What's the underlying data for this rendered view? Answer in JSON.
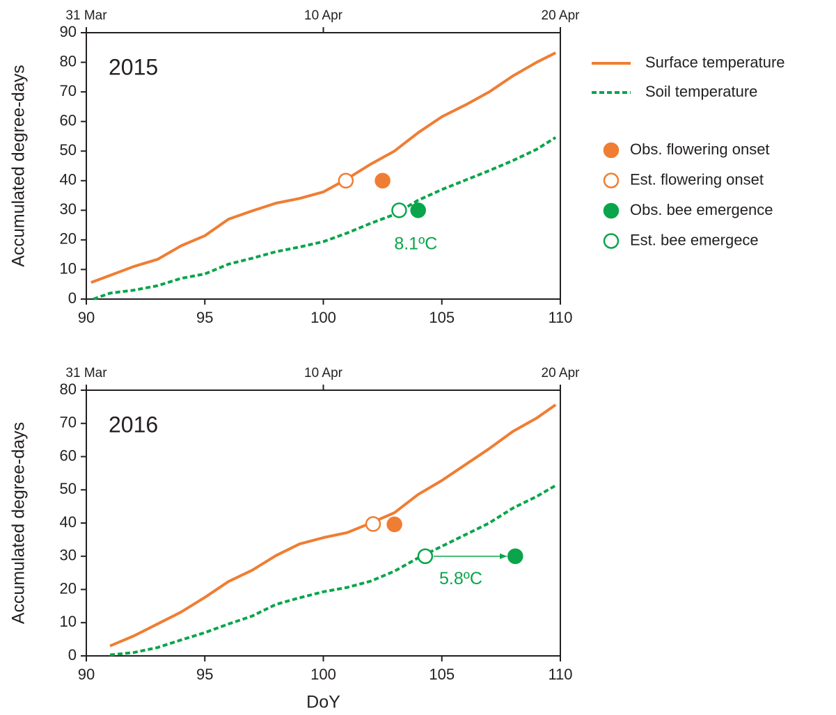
{
  "chart_data": [
    {
      "type": "line",
      "label": "2015",
      "ylabel": "Accumulated degree-days",
      "legend": "right",
      "xlim": [
        90,
        110
      ],
      "xticks": [
        90,
        95,
        100,
        105,
        110
      ],
      "x2ticks": [
        {
          "value": 90,
          "label": "31 Mar"
        },
        {
          "value": 100,
          "label": "10 Apr"
        },
        {
          "value": 110,
          "label": "20 Apr"
        }
      ],
      "ylim": [
        0,
        90
      ],
      "yticks": [
        0,
        10,
        20,
        30,
        40,
        50,
        60,
        70,
        80,
        90
      ],
      "series": [
        {
          "name": "Surface temperature",
          "color": "#ef7d33",
          "style": "solid",
          "x": [
            90.2,
            91,
            92,
            93,
            94,
            95,
            96,
            97,
            98,
            99,
            100,
            101,
            102,
            103,
            104,
            105,
            106,
            107,
            108,
            109,
            109.8
          ],
          "values": [
            5.6,
            8,
            11,
            13.4,
            18,
            21.4,
            27,
            29.8,
            32.4,
            34,
            36.2,
            40.6,
            45.6,
            50,
            56.2,
            61.6,
            65.6,
            70,
            75.4,
            80,
            83.2
          ]
        },
        {
          "name": "Soil temperature",
          "color": "#0aa54b",
          "style": "dashed",
          "x": [
            90.3,
            91,
            92,
            93,
            94,
            95,
            96,
            97,
            98,
            99,
            100,
            101,
            102,
            103,
            104,
            105,
            106,
            107,
            108,
            109,
            109.8
          ],
          "values": [
            0,
            2,
            3,
            4.5,
            7,
            8.5,
            11.8,
            13.8,
            16,
            17.6,
            19.4,
            22.3,
            25.6,
            28.6,
            33.4,
            37,
            40.2,
            43.4,
            46.8,
            50.6,
            54.6
          ]
        },
        {
          "name": "Obs. flowering onset",
          "color": "#ef7d33",
          "marker": "filled",
          "x": [
            102.5
          ],
          "values": [
            40
          ]
        },
        {
          "name": "Est. flowering onset",
          "color": "#ef7d33",
          "marker": "open",
          "x": [
            100.95
          ],
          "values": [
            40
          ]
        },
        {
          "name": "Obs. bee emergence",
          "color": "#0aa54b",
          "marker": "filled",
          "x": [
            104
          ],
          "values": [
            30
          ]
        },
        {
          "name": "Est. bee emergece",
          "color": "#0aa54b",
          "marker": "open",
          "x": [
            103.2
          ],
          "values": [
            30
          ]
        }
      ],
      "annotations": [
        {
          "text": "8.1ºC",
          "x": 103.9,
          "y": 18.3,
          "color": "#0aa54b"
        }
      ]
    },
    {
      "type": "line",
      "label": "2016",
      "ylabel": "Accumulated degree-days",
      "xlabel": "DoY",
      "arrow": true,
      "xlim": [
        90,
        110
      ],
      "xticks": [
        90,
        95,
        100,
        105,
        110
      ],
      "x2ticks": [
        {
          "value": 90,
          "label": "31 Mar"
        },
        {
          "value": 100,
          "label": "10 Apr"
        },
        {
          "value": 110,
          "label": "20 Apr"
        }
      ],
      "ylim": [
        0,
        80
      ],
      "yticks": [
        0,
        10,
        20,
        30,
        40,
        50,
        60,
        70,
        80
      ],
      "series": [
        {
          "color": "#ef7d33",
          "style": "solid",
          "x": [
            91,
            92,
            93,
            94,
            95,
            96,
            97,
            98,
            99,
            100,
            101,
            102,
            103,
            104,
            105,
            106,
            107,
            108,
            109,
            109.8
          ],
          "values": [
            3,
            6,
            9.6,
            13.2,
            17.6,
            22.4,
            25.8,
            30.2,
            33.7,
            35.6,
            37.1,
            40,
            43.1,
            48.6,
            52.8,
            57.6,
            62.4,
            67.6,
            71.6,
            75.6
          ]
        },
        {
          "color": "#0aa54b",
          "style": "dashed",
          "x": [
            91,
            92,
            93,
            94,
            95,
            96,
            97,
            98,
            99,
            100,
            101,
            102,
            103,
            104,
            105,
            106,
            107,
            108,
            109,
            109.8
          ],
          "values": [
            0.3,
            1,
            2.5,
            4.8,
            7,
            9.6,
            12,
            15.5,
            17.5,
            19.3,
            20.6,
            22.5,
            25.5,
            29.5,
            33,
            36.5,
            40,
            44.5,
            48,
            51.3
          ]
        },
        {
          "color": "#ef7d33",
          "marker": "filled",
          "x": [
            103
          ],
          "values": [
            39.6
          ]
        },
        {
          "color": "#ef7d33",
          "marker": "open",
          "x": [
            102.1
          ],
          "values": [
            39.7
          ]
        },
        {
          "color": "#0aa54b",
          "marker": "filled",
          "x": [
            108.1
          ],
          "values": [
            30
          ]
        },
        {
          "color": "#0aa54b",
          "marker": "open",
          "x": [
            104.3
          ],
          "values": [
            30
          ]
        }
      ],
      "annotations": [
        {
          "text": "5.8ºC",
          "x": 105.8,
          "y": 23,
          "color": "#0aa54b"
        }
      ]
    }
  ]
}
